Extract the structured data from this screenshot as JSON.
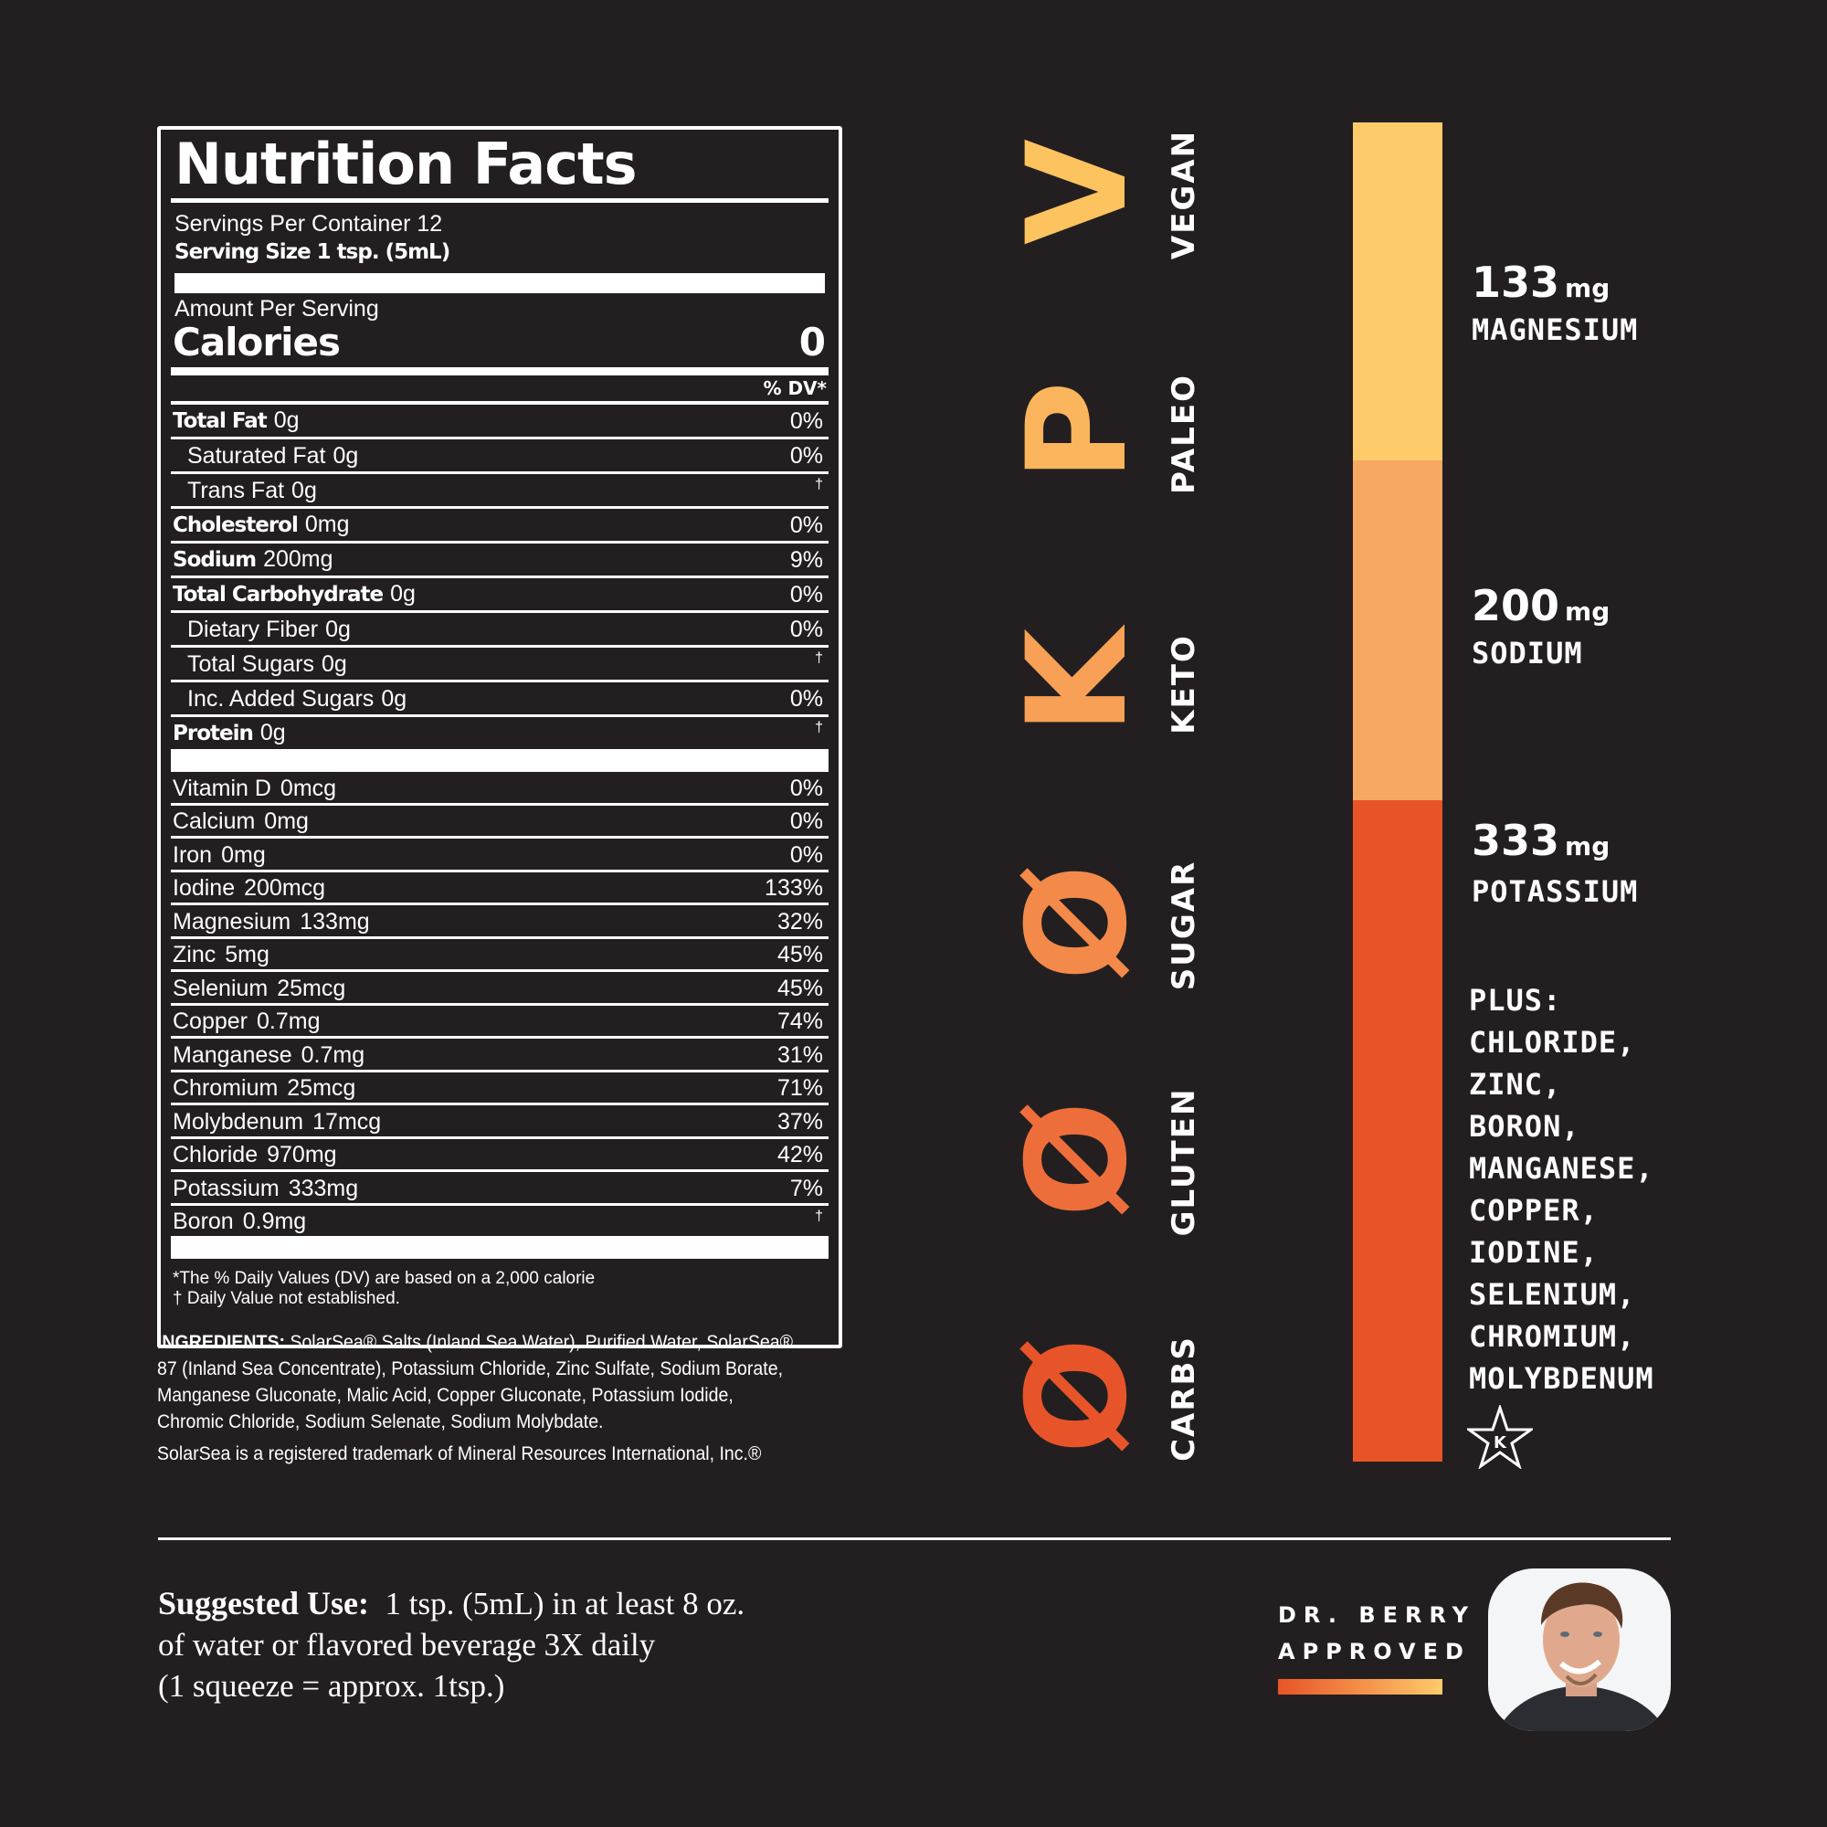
{
  "label": {
    "title": "Nutrition Facts",
    "servings_per_container": "Servings Per Container 12",
    "serving_size": "Serving Size 1 tsp. (5mL)",
    "amount_per_serving": "Amount Per Serving",
    "calories_label": "Calories",
    "calories_value": "0",
    "dv_header": "% DV*",
    "nutrients": [
      {
        "name": "Total Fat",
        "amount": "0g",
        "dv": "0%",
        "bold": true,
        "indent": false
      },
      {
        "name": "Saturated Fat",
        "amount": "0g",
        "dv": "0%",
        "bold": false,
        "indent": true
      },
      {
        "name": "Trans Fat",
        "amount": "0g",
        "dv": "†",
        "bold": false,
        "indent": true
      },
      {
        "name": "Cholesterol",
        "amount": "0mg",
        "dv": "0%",
        "bold": true,
        "indent": false
      },
      {
        "name": "Sodium",
        "amount": "200mg",
        "dv": "9%",
        "bold": true,
        "indent": false
      },
      {
        "name": "Total Carbohydrate",
        "amount": "0g",
        "dv": "0%",
        "bold": true,
        "indent": false
      },
      {
        "name": "Dietary Fiber",
        "amount": "0g",
        "dv": "0%",
        "bold": false,
        "indent": true
      },
      {
        "name": "Total Sugars",
        "amount": "0g",
        "dv": "†",
        "bold": false,
        "indent": true
      },
      {
        "name": "Inc. Added Sugars",
        "amount": "0g",
        "dv": "0%",
        "bold": false,
        "indent": true
      },
      {
        "name": "Protein",
        "amount": "0g",
        "dv": "†",
        "bold": true,
        "indent": false
      }
    ],
    "vitamins": [
      {
        "name": "Vitamin D",
        "amount": "0mcg",
        "dv": "0%"
      },
      {
        "name": "Calcium",
        "amount": "0mg",
        "dv": "0%"
      },
      {
        "name": "Iron",
        "amount": "0mg",
        "dv": "0%"
      },
      {
        "name": "Iodine",
        "amount": "200mcg",
        "dv": "133%"
      },
      {
        "name": "Magnesium",
        "amount": "133mg",
        "dv": "32%"
      },
      {
        "name": "Zinc",
        "amount": "5mg",
        "dv": "45%"
      },
      {
        "name": "Selenium",
        "amount": "25mcg",
        "dv": "45%"
      },
      {
        "name": "Copper",
        "amount": "0.7mg",
        "dv": "74%"
      },
      {
        "name": "Manganese",
        "amount": "0.7mg",
        "dv": "31%"
      },
      {
        "name": "Chromium",
        "amount": "25mcg",
        "dv": "71%"
      },
      {
        "name": "Molybdenum",
        "amount": "17mcg",
        "dv": "37%"
      },
      {
        "name": "Chloride",
        "amount": "970mg",
        "dv": "42%"
      },
      {
        "name": "Potassium",
        "amount": "333mg",
        "dv": "7%"
      },
      {
        "name": "Boron",
        "amount": "0.9mg",
        "dv": "†"
      }
    ],
    "footnote_1": "*The % Daily Values (DV) are based on a 2,000 calorie",
    "footnote_2": "† Daily Value not established."
  },
  "ingredients": {
    "heading": "INGREDIENTS:",
    "text": "SolarSea® Salts (Inland Sea Water), Purified Water, SolarSea® 87 (Inland Sea Concentrate), Potassium Chloride, Zinc Sulfate, Sodium Borate, Manganese Gluconate, Malic Acid, Copper Gluconate, Potassium Iodide, Chromic Chloride, Sodium Selenate, Sodium Molybdate.",
    "trademark": "SolarSea is a registered trademark of Mineral Resources International, Inc.®"
  },
  "badges": [
    {
      "glyph": "V",
      "label": "VEGAN",
      "color": "#fdc35f"
    },
    {
      "glyph": "P",
      "label": "PALEO",
      "color": "#fbb55c"
    },
    {
      "glyph": "K",
      "label": "KETO",
      "color": "#f8a055"
    },
    {
      "glyph": "Ø",
      "label": "SUGAR",
      "color": "#f38a4a"
    },
    {
      "glyph": "Ø",
      "label": "GLUTEN",
      "color": "#ee6e3b"
    },
    {
      "glyph": "Ø",
      "label": "CARBS",
      "color": "#e8542a"
    }
  ],
  "minerals": [
    {
      "value": "133",
      "unit": "mg",
      "name": "MAGNESIUM",
      "color": "#fecb6b"
    },
    {
      "value": "200",
      "unit": "mg",
      "name": "SODIUM",
      "color": "#f7a964"
    },
    {
      "value": "333",
      "unit": "mg",
      "name": "POTASSIUM",
      "color": "#e85427"
    }
  ],
  "plus_list": [
    "PLUS:",
    "CHLORIDE,",
    "ZINC,",
    "BORON,",
    "MANGANESE,",
    "COPPER,",
    "IODINE,",
    "SELENIUM,",
    "CHROMIUM,",
    "MOLYBDENUM"
  ],
  "kosher_icon": "star-k-icon",
  "suggested_use": {
    "heading": "Suggested Use:",
    "line1": "1 tsp. (5mL) in at least 8 oz.",
    "line2": "of water or flavored beverage 3X daily",
    "line3": "(1 squeeze = approx. 1tsp.)"
  },
  "approval": {
    "line1": "DR. BERRY",
    "line2": "APPROVED",
    "gradient_from": "#e85427",
    "gradient_to": "#fecb6b"
  }
}
